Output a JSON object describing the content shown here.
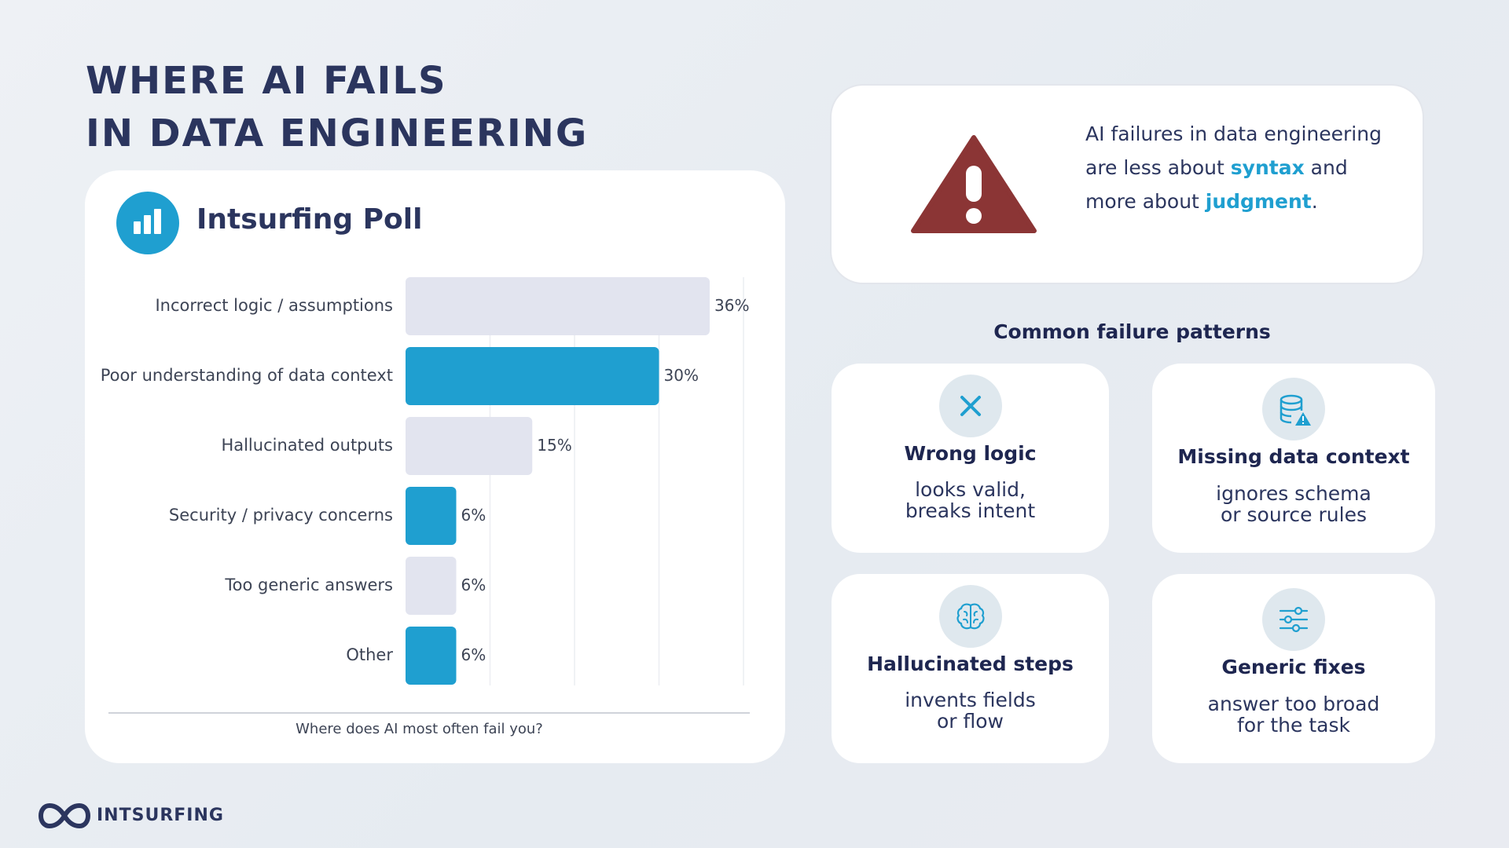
{
  "title": {
    "line1": "WHERE AI FAILS",
    "line2": "IN DATA ENGINEERING"
  },
  "poll": {
    "title": "Intsurfing Poll",
    "icon": "bar-chart-icon",
    "caption": "Where does AI most often fail you?"
  },
  "chart_data": {
    "type": "bar",
    "orientation": "horizontal",
    "categories": [
      "Incorrect logic / assumptions",
      "Poor understanding of data context",
      "Hallucinated outputs",
      "Security / privacy concerns",
      "Too generic answers",
      "Other"
    ],
    "values": [
      36,
      30,
      15,
      6,
      6,
      6
    ],
    "data_labels": [
      "36%",
      "30%",
      "15%",
      "6%",
      "6%",
      "6%"
    ],
    "bar_colors": [
      "#e2e4ef",
      "#1f9fd0",
      "#e2e4ef",
      "#1f9fd0",
      "#e2e4ef",
      "#1f9fd0"
    ],
    "xlim": [
      0,
      40
    ],
    "xlabel": "Where does AI most often fail you?",
    "grid": "vertical",
    "legend": "none"
  },
  "insight": {
    "icon": "warning-icon",
    "icon_color": "#8b3535",
    "pre": "AI failures in data engineering are less about ",
    "highlight1": "syntax",
    "mid": " and more about ",
    "highlight2": "judgment",
    "post": "."
  },
  "patterns": {
    "heading": "Common failure patterns",
    "items": [
      {
        "icon": "x-icon",
        "title": "Wrong logic",
        "line1": "looks valid,",
        "line2": "breaks intent"
      },
      {
        "icon": "database-warning-icon",
        "title": "Missing data context",
        "line1": "ignores schema",
        "line2": "or source rules"
      },
      {
        "icon": "brain-icon",
        "title": "Hallucinated steps",
        "line1": "invents fields",
        "line2": "or flow"
      },
      {
        "icon": "sliders-icon",
        "title": "Generic fixes",
        "line1": "answer too broad",
        "line2": "for the task"
      }
    ]
  },
  "brand": {
    "name": "INTSURFING",
    "logo": "infinity-logo-icon"
  },
  "colors": {
    "accent": "#1f9fd0",
    "navy": "#2b355e",
    "light_bar": "#e2e4ef",
    "warning": "#8b3535"
  }
}
